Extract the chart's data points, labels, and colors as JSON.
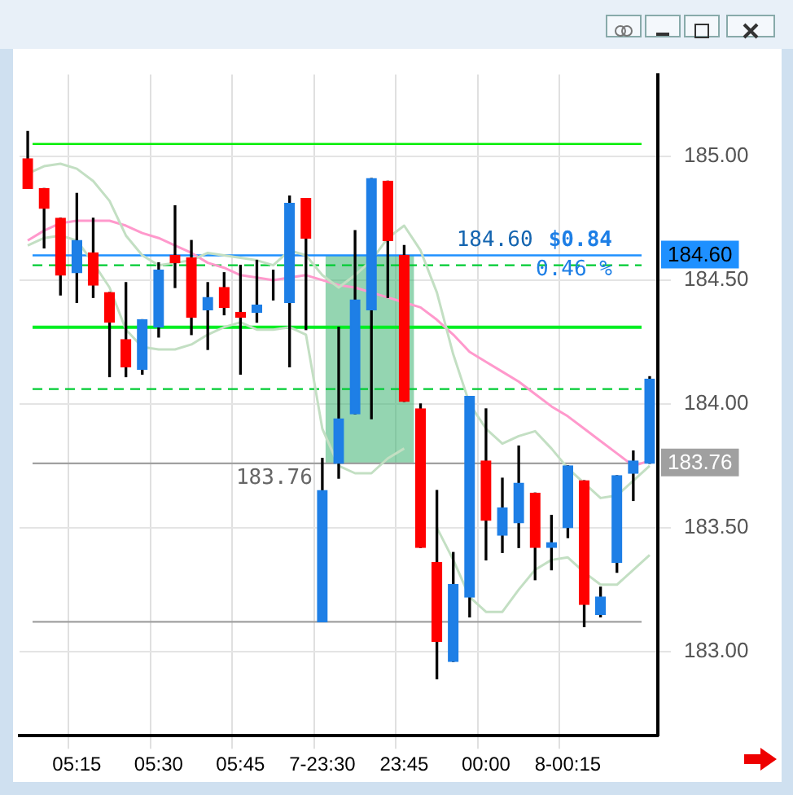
{
  "chart_data": {
    "type": "candlestick",
    "categories": [
      null,
      null,
      null,
      "05:15",
      null,
      null,
      null,
      null,
      "05:30",
      null,
      null,
      null,
      null,
      "05:45",
      null,
      null,
      null,
      null,
      "7-23:30",
      null,
      null,
      null,
      null,
      "23:45",
      null,
      null,
      null,
      null,
      "00:00",
      null,
      null,
      null,
      null,
      "8-00:15",
      null,
      null,
      null,
      null,
      null
    ],
    "ohlc": [
      [
        184.99,
        185.1,
        184.87,
        184.87
      ],
      [
        184.87,
        184.87,
        184.63,
        184.79
      ],
      [
        184.75,
        184.75,
        184.44,
        184.52
      ],
      [
        184.53,
        184.85,
        184.41,
        184.66
      ],
      [
        184.61,
        184.75,
        184.43,
        184.48
      ],
      [
        184.45,
        184.45,
        184.11,
        184.33
      ],
      [
        184.26,
        184.49,
        184.11,
        184.15
      ],
      [
        184.14,
        184.34,
        184.12,
        184.34
      ],
      [
        184.31,
        184.57,
        184.27,
        184.54
      ],
      [
        184.6,
        184.8,
        184.47,
        184.57
      ],
      [
        184.59,
        184.66,
        184.28,
        184.35
      ],
      [
        184.38,
        184.49,
        184.22,
        184.43
      ],
      [
        184.47,
        184.53,
        184.36,
        184.39
      ],
      [
        184.37,
        184.56,
        184.12,
        184.35
      ],
      [
        184.37,
        184.58,
        184.33,
        184.4
      ],
      [
        184.43,
        184.54,
        184.42,
        184.43
      ],
      [
        184.41,
        184.84,
        184.15,
        184.81
      ],
      [
        184.83,
        184.83,
        184.3,
        184.67
      ],
      [
        183.12,
        183.78,
        183.12,
        183.65
      ],
      [
        183.76,
        184.31,
        183.7,
        183.94
      ],
      [
        183.96,
        184.7,
        183.96,
        184.42
      ],
      [
        184.38,
        184.91,
        183.94,
        184.91
      ],
      [
        184.9,
        184.9,
        184.43,
        184.66
      ],
      [
        184.6,
        184.64,
        184.01,
        184.01
      ],
      [
        183.98,
        184.0,
        183.42,
        183.42
      ],
      [
        183.36,
        183.65,
        182.89,
        183.04
      ],
      [
        182.96,
        183.4,
        182.96,
        183.27
      ],
      [
        183.22,
        184.03,
        183.14,
        184.03
      ],
      [
        183.77,
        183.98,
        183.37,
        183.53
      ],
      [
        183.47,
        183.7,
        183.4,
        183.58
      ],
      [
        183.52,
        183.83,
        183.42,
        183.68
      ],
      [
        183.64,
        183.64,
        183.29,
        183.42
      ],
      [
        183.42,
        183.55,
        183.33,
        183.44
      ],
      [
        183.5,
        183.75,
        183.46,
        183.75
      ],
      [
        183.69,
        183.69,
        183.1,
        183.19
      ],
      [
        183.15,
        183.26,
        183.14,
        183.22
      ],
      [
        183.36,
        183.71,
        183.32,
        183.71
      ],
      [
        183.72,
        183.81,
        183.61,
        183.77
      ],
      [
        183.76,
        184.11,
        183.76,
        184.1
      ]
    ],
    "colors": [
      "#ff0000",
      "#ff0000",
      "#ff0000",
      "#1e7fe6",
      "#ff0000",
      "#ff0000",
      "#ff0000",
      "#1e7fe6",
      "#1e7fe6",
      "#ff0000",
      "#ff0000",
      "#1e7fe6",
      "#ff0000",
      "#ff0000",
      "#1e7fe6",
      "#1e7fe6",
      "#1e7fe6",
      "#ff0000",
      "#1e7fe6",
      "#1e7fe6",
      "#1e7fe6",
      "#1e7fe6",
      "#ff0000",
      "#ff0000",
      "#ff0000",
      "#ff0000",
      "#1e7fe6",
      "#1e7fe6",
      "#ff0000",
      "#1e7fe6",
      "#1e7fe6",
      "#ff0000",
      "#1e7fe6",
      "#1e7fe6",
      "#ff0000",
      "#1e7fe6",
      "#1e7fe6",
      "#1e7fe6",
      "#1e7fe6"
    ],
    "series": [
      {
        "type": "line",
        "color": "#c3dfc3",
        "values": [
          184.93,
          184.96,
          184.97,
          184.95,
          184.9,
          184.82,
          184.68,
          184.6,
          184.56,
          184.57,
          184.58,
          184.61,
          184.6,
          184.59,
          184.58,
          184.56,
          184.62,
          184.6,
          184.52,
          184.47,
          184.52,
          184.58,
          184.67,
          184.72,
          184.62,
          184.45,
          184.2,
          184.0,
          183.9,
          183.84,
          183.87,
          183.89,
          183.82,
          183.74,
          183.68,
          183.62,
          183.63,
          183.69,
          183.75
        ]
      },
      {
        "type": "line",
        "color": "#c3dfc3",
        "values": [
          184.64,
          184.67,
          184.68,
          184.66,
          184.57,
          184.47,
          184.3,
          184.23,
          184.22,
          184.22,
          184.24,
          184.28,
          184.31,
          184.33,
          184.3,
          184.3,
          184.31,
          184.28,
          183.9,
          183.75,
          183.72,
          183.72,
          183.78,
          183.82,
          null,
          183.5,
          183.37,
          183.22,
          183.16,
          183.16,
          183.25,
          183.33,
          183.37,
          183.38,
          183.32,
          183.27,
          183.27,
          183.33,
          183.39
        ]
      },
      {
        "type": "line",
        "color": "#ff99cc",
        "values": [
          184.66,
          184.7,
          184.73,
          184.74,
          184.74,
          184.74,
          184.72,
          184.69,
          184.67,
          184.64,
          184.61,
          184.57,
          184.55,
          184.52,
          184.51,
          184.5,
          184.51,
          184.52,
          184.5,
          184.48,
          184.47,
          184.45,
          184.43,
          184.41,
          184.39,
          184.34,
          184.28,
          184.21,
          184.17,
          184.13,
          184.09,
          184.04,
          183.99,
          183.95,
          183.9,
          183.85,
          183.8,
          183.75,
          183.77
        ]
      }
    ],
    "ylim": [
      182.66,
      185.33
    ],
    "yticks": [
      {
        "value": 183,
        "label": "183.00"
      },
      {
        "value": 183.5,
        "label": "183.50"
      },
      {
        "value": 184,
        "label": "184.00"
      },
      {
        "value": 184.5,
        "label": "184.50"
      },
      {
        "value": 185,
        "label": "185.00"
      }
    ],
    "ref_lines": [
      {
        "axis": "y",
        "value": 185.05,
        "color": "#00ee00",
        "line_style": "solid"
      },
      {
        "axis": "y",
        "value": 184.56,
        "color": "#00cc33",
        "line_style": "dashed"
      },
      {
        "axis": "y",
        "value": 184.31,
        "color": "#00ee22",
        "line_style": "solid"
      },
      {
        "axis": "y",
        "value": 184.06,
        "color": "#00cc33",
        "line_style": "dashed"
      },
      {
        "axis": "y",
        "value": 183.12,
        "color": "#a0a0a0",
        "line_style": "solid"
      },
      {
        "axis": "y",
        "value": 184.6,
        "color": "#1e90ff",
        "line_style": "solid",
        "label": "184.60"
      },
      {
        "axis": "y",
        "value": 183.76,
        "color": "#a0a0a0",
        "line_style": "solid",
        "label": "183.76"
      }
    ],
    "bands": [
      {
        "axis": "y",
        "from": 183.76,
        "to": 184.6,
        "color": "#3cb371"
      }
    ],
    "annotations": [
      {
        "text": "184.60",
        "y": 184.6
      },
      {
        "text": "183.76",
        "y": 183.76
      },
      {
        "text": "$0.84",
        "y": 184.6
      },
      {
        "text": "0.46 %",
        "y": 184.6
      }
    ],
    "grid": true,
    "legend": false
  }
}
